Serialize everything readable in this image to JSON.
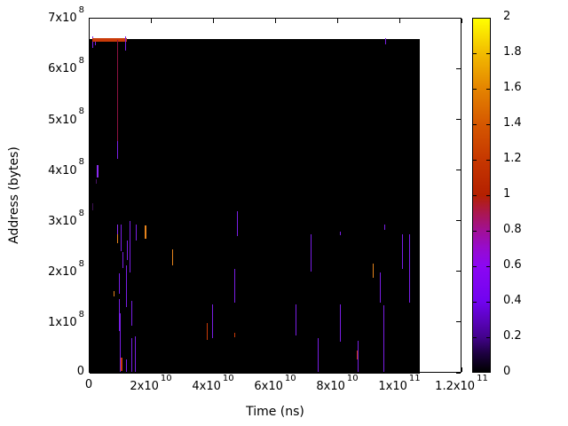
{
  "chart_data": {
    "type": "heatmap",
    "title": "",
    "xlabel": "Time (ns)",
    "ylabel": "Address (bytes)",
    "xlim": [
      0,
      120000000000.0
    ],
    "ylim": [
      0,
      700000000.0
    ],
    "clim": [
      0,
      2
    ],
    "grid": false,
    "legend_position": "colorbar-right",
    "colormap": "gnuplot black-violet-blue-red-orange-yellow",
    "x_ticks": [
      {
        "v": 0,
        "m": "0"
      },
      {
        "v": 20000000000.0,
        "m": "2x10",
        "e": "10"
      },
      {
        "v": 40000000000.0,
        "m": "4x10",
        "e": "10"
      },
      {
        "v": 60000000000.0,
        "m": "6x10",
        "e": "10"
      },
      {
        "v": 80000000000.0,
        "m": "8x10",
        "e": "10"
      },
      {
        "v": 100000000000.0,
        "m": "1x10",
        "e": "11"
      },
      {
        "v": 120000000000.0,
        "m": "1.2x10",
        "e": "11"
      }
    ],
    "y_ticks": [
      {
        "v": 0,
        "m": "0"
      },
      {
        "v": 100000000.0,
        "m": "1x10",
        "e": "8"
      },
      {
        "v": 200000000.0,
        "m": "2x10",
        "e": "8"
      },
      {
        "v": 300000000.0,
        "m": "3x10",
        "e": "8"
      },
      {
        "v": 400000000.0,
        "m": "4x10",
        "e": "8"
      },
      {
        "v": 500000000.0,
        "m": "5x10",
        "e": "8"
      },
      {
        "v": 600000000.0,
        "m": "6x10",
        "e": "8"
      },
      {
        "v": 700000000.0,
        "m": "7x10",
        "e": "8"
      }
    ],
    "colorbar_ticks": [
      {
        "v": 0,
        "m": "0"
      },
      {
        "v": 0.2,
        "m": "0.2"
      },
      {
        "v": 0.4,
        "m": "0.4"
      },
      {
        "v": 0.6,
        "m": "0.6"
      },
      {
        "v": 0.8,
        "m": "0.8"
      },
      {
        "v": 1,
        "m": "1"
      },
      {
        "v": 1.2,
        "m": "1.2"
      },
      {
        "v": 1.4,
        "m": "1.4"
      },
      {
        "v": 1.6,
        "m": "1.6"
      },
      {
        "v": 1.8,
        "m": "1.8"
      },
      {
        "v": 2,
        "m": "2"
      }
    ],
    "colorbar_gradient_stops": [
      [
        0,
        "#000000"
      ],
      [
        5,
        "#1c013e"
      ],
      [
        10,
        "#44028e"
      ],
      [
        15,
        "#5c03c0"
      ],
      [
        20,
        "#7103f0"
      ],
      [
        30,
        "#8c07f2"
      ],
      [
        35,
        "#970bce"
      ],
      [
        40,
        "#a11096"
      ],
      [
        45,
        "#ab174f"
      ],
      [
        50,
        "#b42000"
      ],
      [
        60,
        "#c63700"
      ],
      [
        70,
        "#d55700"
      ],
      [
        80,
        "#e48300"
      ],
      [
        90,
        "#f2ba00"
      ],
      [
        100,
        "#ffff00"
      ]
    ],
    "data_region": {
      "t0": 0,
      "t1": 106300000000.0,
      "a0": 0,
      "a1": 660000000.0,
      "value": 0,
      "color": "#000000"
    },
    "streaks_format": [
      "t0_ns",
      "t1_ns",
      "addr0_bytes",
      "addr1_bytes",
      "value",
      "color"
    ],
    "streaks": [
      [
        800000000.0,
        1250000000.0,
        642000000.0,
        665000000.0,
        0.5,
        "#7a1ee6"
      ],
      [
        1660000000.0,
        2000000000.0,
        648000000.0,
        658000000.0,
        0.5,
        "#7a1ee6"
      ],
      [
        860000000.0,
        12000000000.0,
        655000000.0,
        661000000.0,
        1.2,
        "#c93a08"
      ],
      [
        11400000000.0,
        11530000000.0,
        637000000.0,
        665000000.0,
        0.5,
        "#7a1ee6"
      ],
      [
        8800000000.0,
        8970000000.0,
        455000000.0,
        658000000.0,
        0.9,
        "#8c1240"
      ],
      [
        8800000000.0,
        8970000000.0,
        424000000.0,
        459000000.0,
        0.5,
        "#7a1ee6"
      ],
      [
        95100000000.0,
        95230000000.0,
        649000000.0,
        662000000.0,
        0.5,
        "#7a1ee6"
      ],
      [
        2400000000.0,
        2750000000.0,
        387000000.0,
        411000000.0,
        0.55,
        "#8a2bf0"
      ],
      [
        1900000000.0,
        2200000000.0,
        374000000.0,
        383000000.0,
        0.25,
        "#471364"
      ],
      [
        700000000.0,
        1100000000.0,
        322000000.0,
        336000000.0,
        0.2,
        "#3c1052"
      ],
      [
        12800000000.0,
        12930000000.0,
        200000000.0,
        301000000.0,
        0.5,
        "#7a1ee6"
      ],
      [
        14800000000.0,
        14930000000.0,
        263000000.0,
        294000000.0,
        0.5,
        "#7a1ee6"
      ],
      [
        9950000000.0,
        10080000000.0,
        242000000.0,
        294000000.0,
        0.5,
        "#7a1ee6"
      ],
      [
        8800000000.0,
        8930000000.0,
        275000000.0,
        294000000.0,
        0.55,
        "#8a2bf0"
      ],
      [
        8800000000.0,
        8930000000.0,
        257000000.0,
        275000000.0,
        1.45,
        "#e6831c"
      ],
      [
        17800000000.0,
        17930000000.0,
        266000000.0,
        292000000.0,
        1.45,
        "#e6831c"
      ],
      [
        11960000000.0,
        12090000000.0,
        224000000.0,
        263000000.0,
        0.5,
        "#7a1ee6"
      ],
      [
        10510000000.0,
        10640000000.0,
        208000000.0,
        240000000.0,
        0.5,
        "#7a1ee6"
      ],
      [
        11670000000.0,
        11800000000.0,
        131000000.0,
        214000000.0,
        0.5,
        "#7a1ee6"
      ],
      [
        9380000000.0,
        9510000000.0,
        158000000.0,
        198000000.0,
        0.5,
        "#7a1ee6"
      ],
      [
        9380000000.0,
        9510000000.0,
        84000000.0,
        147000000.0,
        0.5,
        "#7a1ee6"
      ],
      [
        13370000000.0,
        13500000000.0,
        95000000.0,
        144000000.0,
        0.5,
        "#7a1ee6"
      ],
      [
        7660000000.0,
        7790000000.0,
        152000000.0,
        163000000.0,
        1.45,
        "#e6831c"
      ],
      [
        9660000000.0,
        9790000000.0,
        3500000.0,
        119000000.0,
        0.5,
        "#7a1ee6"
      ],
      [
        10100000000.0,
        10230000000.0,
        5000000.0,
        32000000.0,
        1.15,
        "#c93a08"
      ],
      [
        11670000000.0,
        11800000000.0,
        3500000.0,
        28000000.0,
        0.5,
        "#7a1ee6"
      ],
      [
        13370000000.0,
        13500000000.0,
        3500000.0,
        70000000.0,
        0.5,
        "#7a1ee6"
      ],
      [
        14510000000.0,
        14640000000.0,
        3500000.0,
        74000000.0,
        0.5,
        "#7a1ee6"
      ],
      [
        26510000000.0,
        26640000000.0,
        214000000.0,
        245000000.0,
        1.45,
        "#e6831c"
      ],
      [
        39370000000.0,
        39500000000.0,
        70000000.0,
        137000000.0,
        0.5,
        "#7a1ee6"
      ],
      [
        37650000000.0,
        37780000000.0,
        67000000.0,
        100000000.0,
        1.15,
        "#c93a08"
      ],
      [
        46510000000.0,
        46640000000.0,
        140000000.0,
        207000000.0,
        0.5,
        "#7a1ee6"
      ],
      [
        47370000000.0,
        47500000000.0,
        271000000.0,
        320000000.0,
        0.5,
        "#7a1ee6"
      ],
      [
        46510000000.0,
        46640000000.0,
        72000000.0,
        81000000.0,
        1.15,
        "#c93a08"
      ],
      [
        66230000000.0,
        66360000000.0,
        75000000.0,
        137000000.0,
        0.5,
        "#7a1ee6"
      ],
      [
        71090000000.0,
        71220000000.0,
        201000000.0,
        275000000.0,
        0.5,
        "#7a1ee6"
      ],
      [
        73370000000.0,
        73500000000.0,
        3500000.0,
        70000000.0,
        0.5,
        "#7a1ee6"
      ],
      [
        80510000000.0,
        80640000000.0,
        273000000.0,
        280000000.0,
        0.5,
        "#7a1ee6"
      ],
      [
        80510000000.0,
        80640000000.0,
        63000000.0,
        137000000.0,
        0.5,
        "#7a1ee6"
      ],
      [
        86230000000.0,
        86360000000.0,
        3500000.0,
        65000000.0,
        0.5,
        "#7a1ee6"
      ],
      [
        85940000000.0,
        86070000000.0,
        28000000.0,
        46000000.0,
        1.15,
        "#c93a08"
      ],
      [
        91090000000.0,
        91220000000.0,
        189000000.0,
        217000000.0,
        1.45,
        "#e6831c"
      ],
      [
        93370000000.0,
        93500000000.0,
        140000000.0,
        200000000.0,
        0.5,
        "#7a1ee6"
      ],
      [
        94510000000.0,
        94640000000.0,
        3500000.0,
        135000000.0,
        0.5,
        "#7a1ee6"
      ],
      [
        94800000000.0,
        94930000000.0,
        284000000.0,
        294000000.0,
        0.5,
        "#7a1ee6"
      ],
      [
        100510000000.0,
        100640000000.0,
        207000000.0,
        275000000.0,
        0.5,
        "#7a1ee6"
      ],
      [
        102860000000.0,
        102990000000.0,
        140000000.0,
        275000000.0,
        0.5,
        "#7a1ee6"
      ]
    ]
  }
}
